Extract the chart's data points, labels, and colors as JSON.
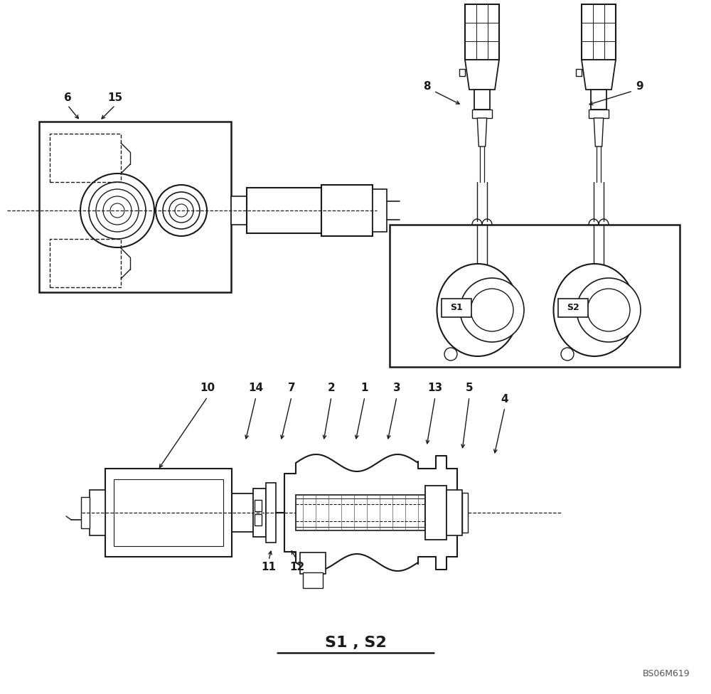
{
  "bg_color": "#ffffff",
  "line_color": "#1a1a1a",
  "title": "S1 , S2",
  "watermark": "BS06M619",
  "figsize": [
    10.0,
    9.76
  ]
}
